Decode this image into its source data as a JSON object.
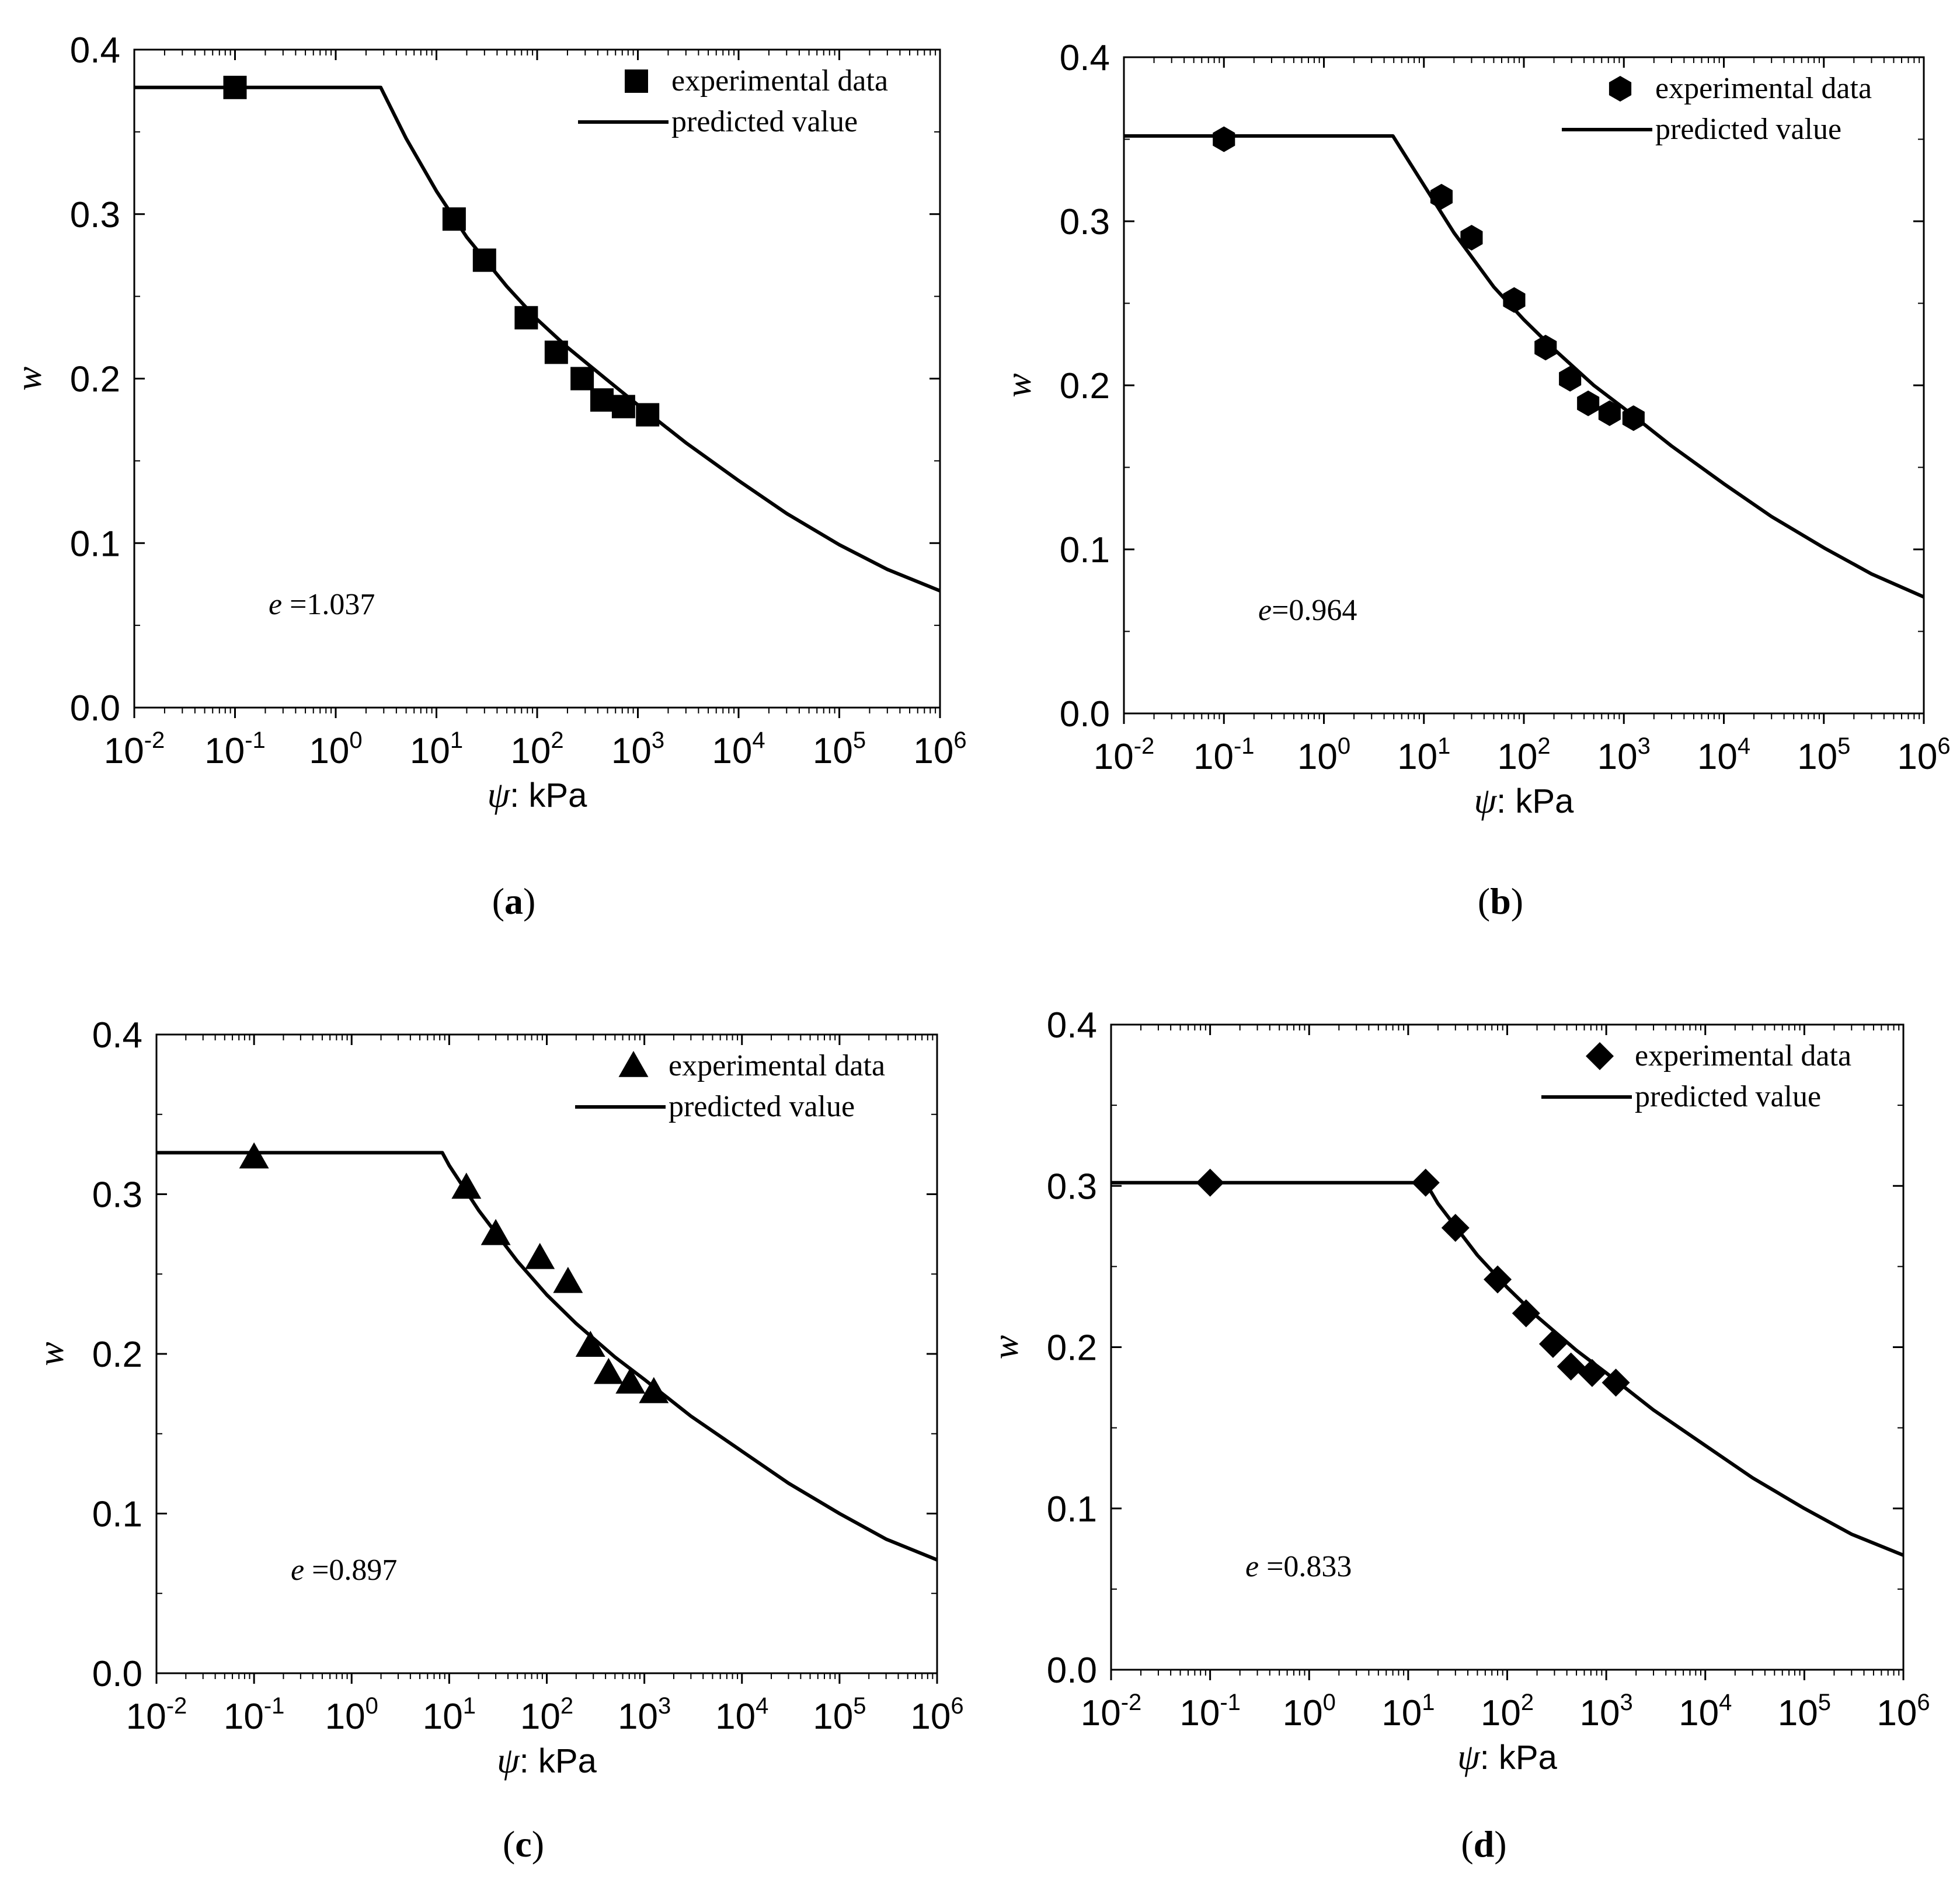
{
  "chart_data": [
    {
      "id": "a",
      "type": "scatter",
      "panel_label": "a",
      "annotation": {
        "symbol": "e",
        "text": " =1.037"
      },
      "ylabel": "w",
      "xlabel_symbol": "ψ",
      "xlabel_unit": ": kPa",
      "x_scale": "log",
      "xlim": [
        0.01,
        1000000
      ],
      "ylim": [
        0.0,
        0.4
      ],
      "x_ticks": [
        "-2",
        "-1",
        "0",
        "1",
        "2",
        "3",
        "4",
        "5",
        "6"
      ],
      "y_ticks": [
        "0.0",
        "0.1",
        "0.2",
        "0.3",
        "0.4"
      ],
      "legend_position": "top-right",
      "marker": "square",
      "series": [
        {
          "name": "experimental data",
          "kind": "markers",
          "points": [
            [
              0.1,
              0.377
            ],
            [
              15,
              0.297
            ],
            [
              30,
              0.272
            ],
            [
              78,
              0.237
            ],
            [
              155,
              0.216
            ],
            [
              280,
              0.2
            ],
            [
              440,
              0.187
            ],
            [
              720,
              0.183
            ],
            [
              1250,
              0.178
            ]
          ]
        },
        {
          "name": "predicted value",
          "kind": "line",
          "points": [
            [
              0.01,
              0.377
            ],
            [
              2.8,
              0.377
            ],
            [
              5,
              0.346
            ],
            [
              10,
              0.314
            ],
            [
              20,
              0.286
            ],
            [
              50,
              0.256
            ],
            [
              100,
              0.236
            ],
            [
              200,
              0.219
            ],
            [
              500,
              0.199
            ],
            [
              1000,
              0.184
            ],
            [
              3000,
              0.161
            ],
            [
              10000,
              0.138
            ],
            [
              30000,
              0.118
            ],
            [
              100000,
              0.099
            ],
            [
              300000,
              0.084
            ],
            [
              1000000,
              0.071
            ]
          ]
        }
      ]
    },
    {
      "id": "b",
      "type": "scatter",
      "panel_label": "b",
      "annotation": {
        "symbol": "e",
        "text": "=0.964"
      },
      "ylabel": "w",
      "xlabel_symbol": "ψ",
      "xlabel_unit": ": kPa",
      "x_scale": "log",
      "xlim": [
        0.01,
        1000000
      ],
      "ylim": [
        0.0,
        0.4
      ],
      "x_ticks": [
        "-2",
        "-1",
        "0",
        "1",
        "2",
        "3",
        "4",
        "5",
        "6"
      ],
      "y_ticks": [
        "0.0",
        "0.1",
        "0.2",
        "0.3",
        "0.4"
      ],
      "legend_position": "top-right",
      "marker": "hexagon",
      "series": [
        {
          "name": "experimental data",
          "kind": "markers",
          "points": [
            [
              0.1,
              0.35
            ],
            [
              15,
              0.315
            ],
            [
              30,
              0.29
            ],
            [
              80,
              0.252
            ],
            [
              165,
              0.223
            ],
            [
              290,
              0.204
            ],
            [
              440,
              0.189
            ],
            [
              720,
              0.183
            ],
            [
              1250,
              0.18
            ]
          ]
        },
        {
          "name": "predicted value",
          "kind": "line",
          "points": [
            [
              0.01,
              0.352
            ],
            [
              4.9,
              0.352
            ],
            [
              10,
              0.322
            ],
            [
              20,
              0.293
            ],
            [
              50,
              0.26
            ],
            [
              100,
              0.24
            ],
            [
              200,
              0.222
            ],
            [
              500,
              0.2
            ],
            [
              1000,
              0.186
            ],
            [
              3000,
              0.163
            ],
            [
              10000,
              0.14
            ],
            [
              30000,
              0.12
            ],
            [
              100000,
              0.101
            ],
            [
              300000,
              0.085
            ],
            [
              1000000,
              0.071
            ]
          ]
        }
      ]
    },
    {
      "id": "c",
      "type": "scatter",
      "panel_label": "c",
      "annotation": {
        "symbol": "e",
        "text": " =0.897"
      },
      "ylabel": "w",
      "xlabel_symbol": "ψ",
      "xlabel_unit": ": kPa",
      "x_scale": "log",
      "xlim": [
        0.01,
        1000000
      ],
      "ylim": [
        0.0,
        0.4
      ],
      "x_ticks": [
        "-2",
        "-1",
        "0",
        "1",
        "2",
        "3",
        "4",
        "5",
        "6"
      ],
      "y_ticks": [
        "0.0",
        "0.1",
        "0.2",
        "0.3",
        "0.4"
      ],
      "legend_position": "top-right",
      "marker": "triangle",
      "series": [
        {
          "name": "experimental data",
          "kind": "markers",
          "points": [
            [
              0.1,
              0.323
            ],
            [
              15,
              0.304
            ],
            [
              30,
              0.275
            ],
            [
              85,
              0.26
            ],
            [
              165,
              0.245
            ],
            [
              280,
              0.205
            ],
            [
              430,
              0.188
            ],
            [
              720,
              0.182
            ],
            [
              1250,
              0.176
            ]
          ]
        },
        {
          "name": "predicted value",
          "kind": "line",
          "points": [
            [
              0.01,
              0.326
            ],
            [
              8.5,
              0.326
            ],
            [
              10,
              0.318
            ],
            [
              20,
              0.29
            ],
            [
              50,
              0.258
            ],
            [
              100,
              0.237
            ],
            [
              200,
              0.219
            ],
            [
              500,
              0.198
            ],
            [
              1000,
              0.184
            ],
            [
              3000,
              0.161
            ],
            [
              10000,
              0.139
            ],
            [
              30000,
              0.119
            ],
            [
              100000,
              0.1
            ],
            [
              300000,
              0.084
            ],
            [
              1000000,
              0.071
            ]
          ]
        }
      ]
    },
    {
      "id": "d",
      "type": "scatter",
      "panel_label": "d",
      "annotation": {
        "symbol": "e",
        "text": " =0.833"
      },
      "ylabel": "w",
      "xlabel_symbol": "ψ",
      "xlabel_unit": ": kPa",
      "x_scale": "log",
      "xlim": [
        0.01,
        1000000
      ],
      "ylim": [
        0.0,
        0.4
      ],
      "x_ticks": [
        "-2",
        "-1",
        "0",
        "1",
        "2",
        "3",
        "4",
        "5",
        "6"
      ],
      "y_ticks": [
        "0.0",
        "0.1",
        "0.2",
        "0.3",
        "0.4"
      ],
      "legend_position": "top-right",
      "marker": "diamond",
      "series": [
        {
          "name": "experimental data",
          "kind": "markers",
          "points": [
            [
              0.1,
              0.302
            ],
            [
              15,
              0.302
            ],
            [
              30,
              0.274
            ],
            [
              80,
              0.242
            ],
            [
              155,
              0.221
            ],
            [
              290,
              0.202
            ],
            [
              440,
              0.188
            ],
            [
              720,
              0.184
            ],
            [
              1250,
              0.178
            ]
          ]
        },
        {
          "name": "predicted value",
          "kind": "line",
          "points": [
            [
              0.01,
              0.302
            ],
            [
              15,
              0.302
            ],
            [
              20,
              0.289
            ],
            [
              50,
              0.257
            ],
            [
              100,
              0.237
            ],
            [
              200,
              0.219
            ],
            [
              500,
              0.198
            ],
            [
              1000,
              0.184
            ],
            [
              3000,
              0.161
            ],
            [
              10000,
              0.139
            ],
            [
              30000,
              0.119
            ],
            [
              100000,
              0.1
            ],
            [
              300000,
              0.084
            ],
            [
              1000000,
              0.071
            ]
          ]
        }
      ]
    }
  ]
}
